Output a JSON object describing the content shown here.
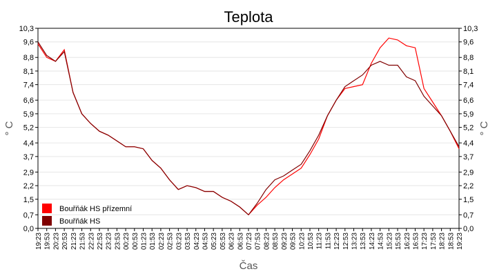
{
  "chart_data": {
    "type": "line",
    "title": "Teplota",
    "xlabel": "Čas",
    "ylabel": "° C",
    "y2label": "° C",
    "categories": [
      "19:23",
      "19:53",
      "20:23",
      "20:53",
      "21:23",
      "21:53",
      "22:23",
      "22:53",
      "23:23",
      "23:53",
      "00:23",
      "00:53",
      "01:23",
      "01:53",
      "02:23",
      "02:53",
      "03:23",
      "03:53",
      "04:23",
      "04:53",
      "05:23",
      "05:53",
      "06:23",
      "06:53",
      "07:23",
      "07:53",
      "08:23",
      "08:53",
      "09:23",
      "09:53",
      "10:23",
      "10:53",
      "11:23",
      "11:53",
      "12:23",
      "12:53",
      "13:23",
      "13:53",
      "14:23",
      "14:53",
      "15:23",
      "15:53",
      "16:23",
      "16:53",
      "17:23",
      "17:53",
      "18:23",
      "18:53",
      "19:23"
    ],
    "series": [
      {
        "name": "Bouřňák HS přízemní",
        "color": "#ff0000",
        "values": [
          9.5,
          8.8,
          8.6,
          9.2,
          7.0,
          5.9,
          5.4,
          5.0,
          4.8,
          4.5,
          4.2,
          4.2,
          4.1,
          3.5,
          3.1,
          2.5,
          2.0,
          2.2,
          2.1,
          1.9,
          1.9,
          1.6,
          1.4,
          1.1,
          0.7,
          1.2,
          1.6,
          2.1,
          2.5,
          2.8,
          3.1,
          3.8,
          4.6,
          5.8,
          6.6,
          7.2,
          7.3,
          7.4,
          8.5,
          9.3,
          9.8,
          9.7,
          9.4,
          9.3,
          7.2,
          6.5,
          5.8,
          5.0,
          4.1
        ]
      },
      {
        "name": "Bouřňák HS",
        "color": "#800000",
        "values": [
          9.6,
          8.9,
          8.6,
          9.1,
          7.0,
          5.9,
          5.4,
          5.0,
          4.8,
          4.5,
          4.2,
          4.2,
          4.1,
          3.5,
          3.1,
          2.5,
          2.0,
          2.2,
          2.1,
          1.9,
          1.9,
          1.6,
          1.4,
          1.1,
          0.7,
          1.3,
          2.0,
          2.5,
          2.7,
          3.0,
          3.3,
          4.0,
          4.8,
          5.8,
          6.6,
          7.3,
          7.6,
          7.9,
          8.4,
          8.6,
          8.4,
          8.4,
          7.8,
          7.6,
          6.8,
          6.3,
          5.8,
          5.0,
          4.2
        ]
      }
    ],
    "ylim": [
      0,
      10.3
    ],
    "yticks": [
      {
        "value": 0,
        "label": "0,0"
      },
      {
        "value": 0.7,
        "label": "0,7"
      },
      {
        "value": 1.5,
        "label": "1,5"
      },
      {
        "value": 2.2,
        "label": "2,2"
      },
      {
        "value": 2.9,
        "label": "2,9"
      },
      {
        "value": 3.7,
        "label": "3,7"
      },
      {
        "value": 4.4,
        "label": "4,4"
      },
      {
        "value": 5.2,
        "label": "5,2"
      },
      {
        "value": 5.9,
        "label": "5,9"
      },
      {
        "value": 6.6,
        "label": "6,6"
      },
      {
        "value": 7.4,
        "label": "7,4"
      },
      {
        "value": 8.1,
        "label": "8,1"
      },
      {
        "value": 8.8,
        "label": "8,8"
      },
      {
        "value": 9.6,
        "label": "9,6"
      },
      {
        "value": 10.3,
        "label": "10,3"
      }
    ],
    "y2lim": [
      0,
      10.3
    ],
    "y2ticks": [
      {
        "value": 0,
        "label": "0,0"
      },
      {
        "value": 0.7,
        "label": "0,7"
      },
      {
        "value": 1.5,
        "label": "1,5"
      },
      {
        "value": 2.2,
        "label": "2,2"
      },
      {
        "value": 2.9,
        "label": "2,9"
      },
      {
        "value": 3.7,
        "label": "3,7"
      },
      {
        "value": 4.4,
        "label": "4,4"
      },
      {
        "value": 5.2,
        "label": "5,2"
      },
      {
        "value": 5.9,
        "label": "5,9"
      },
      {
        "value": 6.6,
        "label": "6,6"
      },
      {
        "value": 7.4,
        "label": "7,4"
      },
      {
        "value": 8.1,
        "label": "8,1"
      },
      {
        "value": 8.8,
        "label": "8,8"
      },
      {
        "value": 9.6,
        "label": "9,6"
      },
      {
        "value": 10.3,
        "label": "10,3"
      }
    ],
    "grid": true,
    "legend": "lower left"
  }
}
